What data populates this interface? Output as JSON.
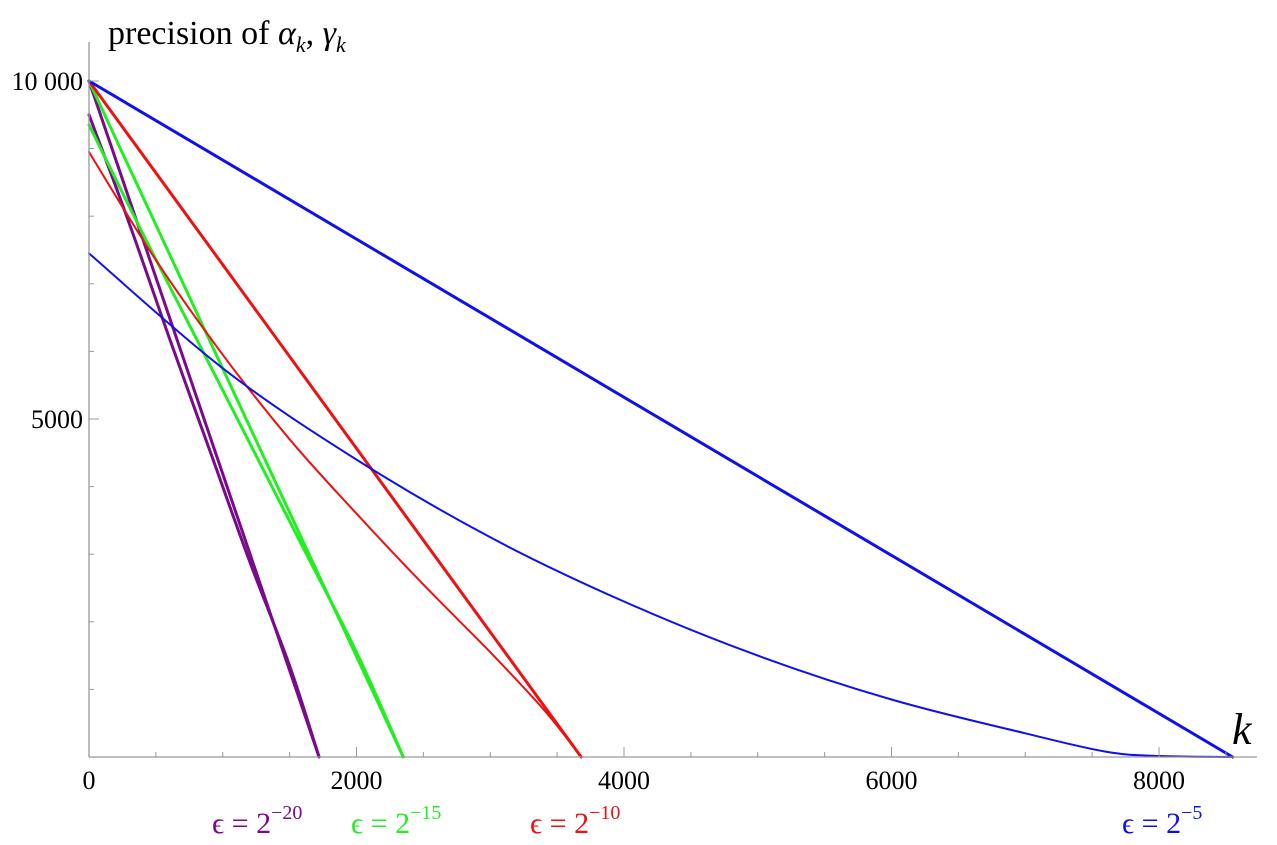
{
  "chart_data": {
    "type": "line",
    "ylabel": "precision of α_k, γ_k",
    "xlabel": "k",
    "ylabel_parts": {
      "pre": "precision of ",
      "a": "α",
      "a_sub": "k",
      "sep": ", ",
      "g": "γ",
      "g_sub": "k"
    },
    "xlim": [
      0,
      8900
    ],
    "ylim": [
      0,
      10300
    ],
    "x_ticks": [
      0,
      2000,
      4000,
      6000,
      8000
    ],
    "x_tick_labels": [
      "0",
      "2000",
      "4000",
      "6000",
      "8000"
    ],
    "y_ticks": [
      5000,
      10000
    ],
    "y_tick_labels": [
      "5000",
      "10 000"
    ],
    "grid": false,
    "series": [
      {
        "label": "ϵ = 2−20",
        "color": "#7a0a8c",
        "width": 3,
        "points": [
          [
            0,
            10000
          ],
          [
            1720,
            0
          ]
        ]
      },
      {
        "label": "ϵ = 2−20",
        "color": "#7a0a8c",
        "width": 3,
        "points": [
          [
            0,
            9500
          ],
          [
            300,
            7900
          ],
          [
            600,
            6200
          ],
          [
            900,
            4550
          ],
          [
            1200,
            2900
          ],
          [
            1500,
            1350
          ],
          [
            1720,
            0
          ]
        ]
      },
      {
        "label": "ϵ = 2−15",
        "color": "#22ee22",
        "width": 3,
        "points": [
          [
            0,
            10000
          ],
          [
            2350,
            0
          ]
        ]
      },
      {
        "label": "ϵ = 2−15",
        "color": "#22ee22",
        "width": 3,
        "points": [
          [
            0,
            9350
          ],
          [
            400,
            7750
          ],
          [
            800,
            6200
          ],
          [
            1200,
            4650
          ],
          [
            1600,
            3100
          ],
          [
            2000,
            1550
          ],
          [
            2350,
            0
          ]
        ]
      },
      {
        "label": "ϵ = 2−10",
        "color": "#ee1111",
        "width": 3,
        "points": [
          [
            0,
            10000
          ],
          [
            3680,
            0
          ]
        ]
      },
      {
        "label": "ϵ = 2−10",
        "color": "#ee1111",
        "width": 2,
        "points": [
          [
            0,
            8950
          ],
          [
            500,
            7350
          ],
          [
            1000,
            5950
          ],
          [
            1500,
            4700
          ],
          [
            2000,
            3600
          ],
          [
            2500,
            2550
          ],
          [
            3000,
            1550
          ],
          [
            3400,
            700
          ],
          [
            3680,
            0
          ]
        ]
      },
      {
        "label": "ϵ = 2−5",
        "color": "#1010ee",
        "width": 3,
        "points": [
          [
            0,
            10000
          ],
          [
            8550,
            0
          ]
        ]
      },
      {
        "label": "ϵ = 2−5",
        "color": "#1010ee",
        "width": 2,
        "points": [
          [
            0,
            7450
          ],
          [
            1000,
            5750
          ],
          [
            2000,
            4400
          ],
          [
            3000,
            3250
          ],
          [
            4000,
            2300
          ],
          [
            5000,
            1500
          ],
          [
            6000,
            850
          ],
          [
            7000,
            350
          ],
          [
            7600,
            80
          ],
          [
            8000,
            15
          ],
          [
            8550,
            0
          ]
        ]
      }
    ],
    "annotations": [
      {
        "base": "ϵ = 2",
        "exp": "−20",
        "color": "#7a0a8c"
      },
      {
        "base": "ϵ = 2",
        "exp": "−15",
        "color": "#22ee22"
      },
      {
        "base": "ϵ = 2",
        "exp": "−10",
        "color": "#ee1111"
      },
      {
        "base": "ϵ = 2",
        "exp": "−5",
        "color": "#1010ee"
      }
    ]
  }
}
